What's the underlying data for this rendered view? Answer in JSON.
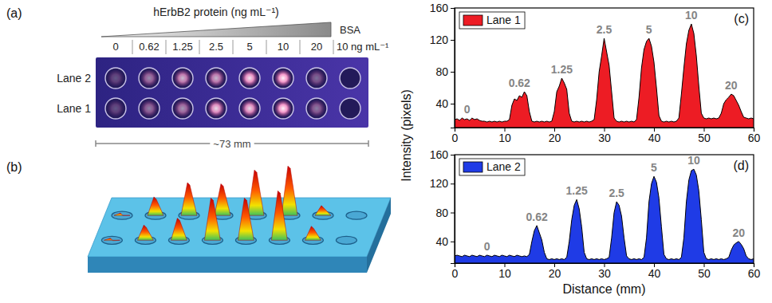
{
  "chart_data": [
    {
      "type": "area",
      "panel_label": "(c)",
      "ylabel": "Intensity (pixels)",
      "x": [
        0,
        0.5,
        1,
        1.5,
        2,
        2.5,
        3,
        3.5,
        4,
        4.5,
        5,
        5.5,
        6,
        6.5,
        7,
        7.5,
        8,
        8.5,
        9,
        9.5,
        10,
        10.5,
        11,
        11.5,
        12,
        12.5,
        13,
        13.5,
        14,
        14.5,
        15,
        15.5,
        16,
        16.5,
        17,
        17.5,
        18,
        18.5,
        19,
        19.5,
        20,
        20.5,
        21,
        21.5,
        22,
        22.5,
        23,
        23.5,
        24,
        24.5,
        25,
        25.5,
        26,
        26.5,
        27,
        27.5,
        28,
        28.5,
        29,
        29.5,
        30,
        30.5,
        31,
        31.5,
        32,
        32.5,
        33,
        33.5,
        34,
        34.5,
        35,
        35.5,
        36,
        36.5,
        37,
        37.5,
        38,
        38.5,
        39,
        39.5,
        40,
        40.5,
        41,
        41.5,
        42,
        42.5,
        43,
        43.5,
        44,
        44.5,
        45,
        45.5,
        46,
        46.5,
        47,
        47.5,
        48,
        48.5,
        49,
        49.5,
        50,
        50.5,
        51,
        51.5,
        52,
        52.5,
        53,
        53.5,
        54,
        54.5,
        55,
        55.5,
        56,
        56.5,
        57,
        57.5,
        58,
        58.5,
        59,
        59.5,
        60
      ],
      "xlim": [
        0,
        60
      ],
      "xticks": [
        0,
        10,
        20,
        30,
        40,
        50,
        60
      ],
      "ylim": [
        10,
        160
      ],
      "yticks": [
        40,
        80,
        120,
        160
      ],
      "legend": "upper left",
      "series": [
        {
          "name": "Lane 1",
          "color": "#ed1c24",
          "values": [
            20,
            21,
            19,
            22,
            20,
            21,
            19,
            22,
            20,
            21,
            19,
            18,
            18,
            17,
            18,
            17,
            18,
            17,
            18,
            17,
            18,
            18,
            20,
            38,
            46,
            44,
            50,
            48,
            55,
            50,
            30,
            18,
            17,
            18,
            17,
            18,
            17,
            18,
            17,
            18,
            30,
            55,
            62,
            72,
            66,
            58,
            28,
            18,
            17,
            18,
            17,
            18,
            17,
            18,
            17,
            18,
            20,
            45,
            80,
            100,
            122,
            105,
            88,
            55,
            22,
            18,
            17,
            18,
            17,
            18,
            17,
            18,
            17,
            20,
            48,
            85,
            108,
            118,
            122,
            112,
            92,
            60,
            25,
            18,
            17,
            18,
            17,
            18,
            17,
            18,
            22,
            52,
            85,
            115,
            132,
            140,
            128,
            100,
            62,
            28,
            22,
            21,
            22,
            21,
            22,
            21,
            22,
            28,
            40,
            45,
            48,
            52,
            50,
            44,
            38,
            30,
            23,
            22,
            21,
            22,
            21
          ]
        }
      ],
      "annotations": [
        {
          "text": "0",
          "x": 2.5
        },
        {
          "text": "0.62",
          "x": 13
        },
        {
          "text": "1.25",
          "x": 21.5
        },
        {
          "text": "2.5",
          "x": 30
        },
        {
          "text": "5",
          "x": 39
        },
        {
          "text": "10",
          "x": 47.5
        },
        {
          "text": "20",
          "x": 55.5
        }
      ]
    },
    {
      "type": "area",
      "panel_label": "(d)",
      "xlabel": "Distance (mm)",
      "x": [
        0,
        0.5,
        1,
        1.5,
        2,
        2.5,
        3,
        3.5,
        4,
        4.5,
        5,
        5.5,
        6,
        6.5,
        7,
        7.5,
        8,
        8.5,
        9,
        9.5,
        10,
        10.5,
        11,
        11.5,
        12,
        12.5,
        13,
        13.5,
        14,
        14.5,
        15,
        15.5,
        16,
        16.5,
        17,
        17.5,
        18,
        18.5,
        19,
        19.5,
        20,
        20.5,
        21,
        21.5,
        22,
        22.5,
        23,
        23.5,
        24,
        24.5,
        25,
        25.5,
        26,
        26.5,
        27,
        27.5,
        28,
        28.5,
        29,
        29.5,
        30,
        30.5,
        31,
        31.5,
        32,
        32.5,
        33,
        33.5,
        34,
        34.5,
        35,
        35.5,
        36,
        36.5,
        37,
        37.5,
        38,
        38.5,
        39,
        39.5,
        40,
        40.5,
        41,
        41.5,
        42,
        42.5,
        43,
        43.5,
        44,
        44.5,
        45,
        45.5,
        46,
        46.5,
        47,
        47.5,
        48,
        48.5,
        49,
        49.5,
        50,
        50.5,
        51,
        51.5,
        52,
        52.5,
        53,
        53.5,
        54,
        54.5,
        55,
        55.5,
        56,
        56.5,
        57,
        57.5,
        58,
        58.5,
        59,
        59.5,
        60
      ],
      "xlim": [
        0,
        60
      ],
      "xticks": [
        0,
        10,
        20,
        30,
        40,
        50,
        60
      ],
      "ylim": [
        10,
        160
      ],
      "yticks": [
        40,
        80,
        120,
        160
      ],
      "legend": "upper left",
      "series": [
        {
          "name": "Lane 2",
          "color": "#1f3be6",
          "values": [
            20,
            21,
            20,
            19,
            21,
            20,
            19,
            21,
            20,
            19,
            21,
            20,
            19,
            21,
            20,
            19,
            21,
            20,
            19,
            21,
            20,
            19,
            21,
            20,
            19,
            21,
            20,
            19,
            20,
            19,
            22,
            40,
            55,
            62,
            52,
            42,
            25,
            16,
            15,
            16,
            15,
            16,
            15,
            16,
            15,
            18,
            40,
            70,
            90,
            98,
            85,
            60,
            25,
            16,
            15,
            16,
            15,
            16,
            15,
            16,
            15,
            16,
            18,
            45,
            80,
            95,
            90,
            75,
            45,
            20,
            16,
            15,
            16,
            15,
            16,
            15,
            18,
            45,
            95,
            120,
            130,
            122,
            100,
            60,
            22,
            16,
            15,
            16,
            15,
            16,
            15,
            18,
            45,
            95,
            125,
            138,
            140,
            132,
            110,
            70,
            25,
            16,
            15,
            16,
            15,
            16,
            15,
            16,
            15,
            16,
            18,
            28,
            35,
            38,
            40,
            36,
            30,
            20,
            16,
            15,
            16
          ]
        }
      ],
      "annotations": [
        {
          "text": "0",
          "x": 6.5
        },
        {
          "text": "0.62",
          "x": 16.5
        },
        {
          "text": "1.25",
          "x": 24.5
        },
        {
          "text": "2.5",
          "x": 32.5
        },
        {
          "text": "5",
          "x": 40
        },
        {
          "text": "10",
          "x": 48
        },
        {
          "text": "20",
          "x": 57
        }
      ]
    }
  ],
  "photo": {
    "panel_label": "(a)",
    "title": "hErbB2 protein (ng mL⁻¹)",
    "columns": [
      "0",
      "0.62",
      "1.25",
      "2.5",
      "5",
      "10",
      "20"
    ],
    "control": "BSA",
    "control_concentration": "10 ng mL⁻¹",
    "lanes": [
      "Lane 2",
      "Lane 1"
    ],
    "scale_bar": "~73 mm"
  },
  "surface": {
    "panel_label": "(b)"
  }
}
